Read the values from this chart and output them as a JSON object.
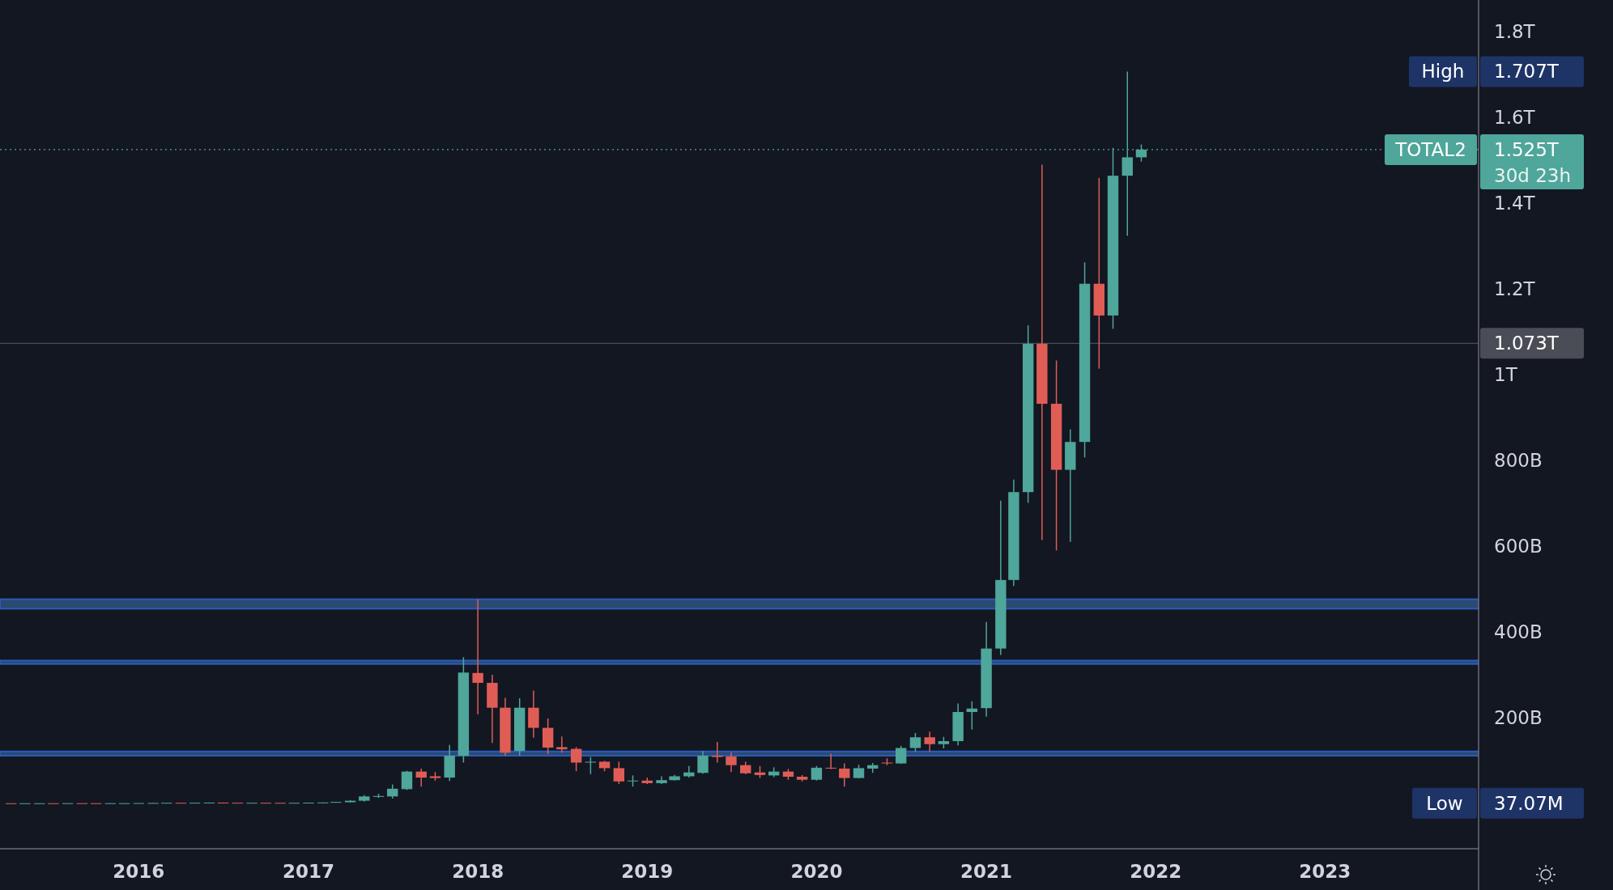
{
  "chart_data": {
    "type": "candlestick",
    "x": [
      "2015-04",
      "2015-05",
      "2015-06",
      "2015-07",
      "2015-08",
      "2015-09",
      "2015-10",
      "2015-11",
      "2015-12",
      "2016-01",
      "2016-02",
      "2016-03",
      "2016-04",
      "2016-05",
      "2016-06",
      "2016-07",
      "2016-08",
      "2016-09",
      "2016-10",
      "2016-11",
      "2016-12",
      "2017-01",
      "2017-02",
      "2017-03",
      "2017-04",
      "2017-05",
      "2017-06",
      "2017-07",
      "2017-08",
      "2017-09",
      "2017-10",
      "2017-11",
      "2017-12",
      "2018-01",
      "2018-02",
      "2018-03",
      "2018-04",
      "2018-05",
      "2018-06",
      "2018-07",
      "2018-08",
      "2018-09",
      "2018-10",
      "2018-11",
      "2018-12",
      "2019-01",
      "2019-02",
      "2019-03",
      "2019-04",
      "2019-05",
      "2019-06",
      "2019-07",
      "2019-08",
      "2019-09",
      "2019-10",
      "2019-11",
      "2019-12",
      "2020-01",
      "2020-02",
      "2020-03",
      "2020-04",
      "2020-05",
      "2020-06",
      "2020-07",
      "2020-08",
      "2020-09",
      "2020-10",
      "2020-11",
      "2020-12",
      "2021-01",
      "2021-02",
      "2021-03",
      "2021-04",
      "2021-05",
      "2021-06",
      "2021-07",
      "2021-08",
      "2021-09",
      "2021-10",
      "2021-11",
      "2021-12"
    ],
    "ohlc": [
      [
        80000000.0,
        90000000.0,
        37070000.0,
        50000000.0
      ],
      [
        50000000.0,
        70000000.0,
        40000000.0,
        60000000.0
      ],
      [
        60000000.0,
        80000000.0,
        50000000.0,
        70000000.0
      ],
      [
        70000000.0,
        90000000.0,
        50000000.0,
        60000000.0
      ],
      [
        60000000.0,
        300000000.0,
        50000000.0,
        250000000.0
      ],
      [
        250000000.0,
        300000000.0,
        150000000.0,
        200000000.0
      ],
      [
        200000000.0,
        250000000.0,
        150000000.0,
        180000000.0
      ],
      [
        180000000.0,
        300000000.0,
        150000000.0,
        250000000.0
      ],
      [
        250000000.0,
        350000000.0,
        200000000.0,
        300000000.0
      ],
      [
        300000000.0,
        600000000.0,
        250000000.0,
        500000000.0
      ],
      [
        500000000.0,
        900000000.0,
        400000000.0,
        800000000.0
      ],
      [
        800000000.0,
        1300000000.0,
        700000000.0,
        1200000000.0
      ],
      [
        1200000000.0,
        1300000000.0,
        900000000.0,
        1000000000.0
      ],
      [
        1000000000.0,
        1400000000.0,
        900000000.0,
        1300000000.0
      ],
      [
        1300000000.0,
        2000000000.0,
        1000000000.0,
        1600000000.0
      ],
      [
        1600000000.0,
        1800000000.0,
        1100000000.0,
        1300000000.0
      ],
      [
        1300000000.0,
        1400000000.0,
        1000000000.0,
        1100000000.0
      ],
      [
        1100000000.0,
        1300000000.0,
        1000000000.0,
        1200000000.0
      ],
      [
        1200000000.0,
        1300000000.0,
        1000000000.0,
        1100000000.0
      ],
      [
        1100000000.0,
        1200000000.0,
        900000000.0,
        1000000000.0
      ],
      [
        1000000000.0,
        1200000000.0,
        900000000.0,
        1100000000.0
      ],
      [
        1100000000.0,
        1600000000.0,
        1000000000.0,
        1500000000.0
      ],
      [
        1500000000.0,
        2000000000.0,
        1300000000.0,
        1900000000.0
      ],
      [
        1900000000.0,
        3500000000.0,
        1800000000.0,
        3200000000.0
      ],
      [
        2500000000.0,
        7000000000.0,
        2000000000.0,
        6000000000.0
      ],
      [
        6000000000.0,
        19000000000.0,
        4000000000.0,
        16000000000.0
      ],
      [
        15000000000.0,
        22000000000.0,
        13000000000.0,
        17000000000.0
      ],
      [
        16000000000.0,
        44000000000.0,
        11000000000.0,
        34000000000.0
      ],
      [
        33000000000.0,
        76000000000.0,
        31000000000.0,
        74000000000.0
      ],
      [
        74000000000.0,
        81000000000.0,
        39000000000.0,
        60000000000.0
      ],
      [
        63000000000.0,
        73000000000.0,
        53000000000.0,
        59000000000.0
      ],
      [
        60000000000.0,
        136000000000.0,
        52000000000.0,
        111000000000.0
      ],
      [
        111000000000.0,
        341000000000.0,
        95000000000.0,
        305000000000.0
      ],
      [
        304000000000.0,
        476000000000.0,
        208000000000.0,
        281000000000.0
      ],
      [
        281000000000.0,
        300000000000.0,
        141000000000.0,
        223000000000.0
      ],
      [
        223000000000.0,
        246000000000.0,
        111000000000.0,
        118000000000.0
      ],
      [
        122000000000.0,
        245000000000.0,
        111000000000.0,
        223000000000.0
      ],
      [
        223000000000.0,
        263000000000.0,
        153000000000.0,
        176000000000.0
      ],
      [
        176000000000.0,
        198000000000.0,
        115000000000.0,
        130000000000.0
      ],
      [
        131000000000.0,
        156000000000.0,
        118000000000.0,
        126000000000.0
      ],
      [
        127000000000.0,
        131000000000.0,
        75000000000.0,
        95000000000.0
      ],
      [
        95000000000.0,
        108000000000.0,
        68000000000.0,
        97000000000.0
      ],
      [
        97000000000.0,
        99000000000.0,
        75000000000.0,
        82000000000.0
      ],
      [
        82000000000.0,
        97000000000.0,
        45000000000.0,
        51000000000.0
      ],
      [
        52000000000.0,
        65000000000.0,
        39000000000.0,
        53000000000.0
      ],
      [
        53000000000.0,
        60000000000.0,
        45000000000.0,
        47000000000.0
      ],
      [
        47000000000.0,
        63000000000.0,
        45000000000.0,
        54000000000.0
      ],
      [
        54000000000.0,
        66000000000.0,
        53000000000.0,
        63000000000.0
      ],
      [
        63000000000.0,
        87000000000.0,
        60000000000.0,
        72000000000.0
      ],
      [
        71000000000.0,
        122000000000.0,
        69000000000.0,
        111000000000.0
      ],
      [
        111000000000.0,
        143000000000.0,
        95000000000.0,
        108000000000.0
      ],
      [
        109000000000.0,
        119000000000.0,
        73000000000.0,
        89000000000.0
      ],
      [
        89000000000.0,
        97000000000.0,
        68000000000.0,
        70000000000.0
      ],
      [
        72000000000.0,
        87000000000.0,
        59000000000.0,
        66000000000.0
      ],
      [
        65000000000.0,
        84000000000.0,
        61000000000.0,
        74000000000.0
      ],
      [
        74000000000.0,
        80000000000.0,
        55000000000.0,
        62000000000.0
      ],
      [
        62000000000.0,
        66000000000.0,
        51000000000.0,
        55000000000.0
      ],
      [
        55000000000.0,
        87000000000.0,
        53000000000.0,
        83000000000.0
      ],
      [
        83000000000.0,
        116000000000.0,
        80000000000.0,
        81000000000.0
      ],
      [
        81000000000.0,
        93000000000.0,
        39000000000.0,
        59000000000.0
      ],
      [
        59000000000.0,
        90000000000.0,
        58000000000.0,
        82000000000.0
      ],
      [
        81000000000.0,
        94000000000.0,
        71000000000.0,
        89000000000.0
      ],
      [
        95000000000.0,
        105000000000.0,
        89000000000.0,
        93000000000.0
      ],
      [
        93000000000.0,
        134000000000.0,
        92000000000.0,
        129000000000.0
      ],
      [
        129000000000.0,
        164000000000.0,
        120000000000.0,
        154000000000.0
      ],
      [
        154000000000.0,
        167000000000.0,
        121000000000.0,
        138000000000.0
      ],
      [
        138000000000.0,
        155000000000.0,
        128000000000.0,
        145000000000.0
      ],
      [
        145000000000.0,
        233000000000.0,
        135000000000.0,
        213000000000.0
      ],
      [
        213000000000.0,
        238000000000.0,
        172000000000.0,
        221000000000.0
      ],
      [
        222000000000.0,
        423000000000.0,
        202000000000.0,
        361000000000.0
      ],
      [
        361000000000.0,
        706000000000.0,
        346000000000.0,
        521000000000.0
      ],
      [
        521000000000.0,
        755000000000.0,
        507000000000.0,
        726000000000.0
      ],
      [
        726000000000.0,
        1115000000000.0,
        701000000000.0,
        1072000000000.0
      ],
      [
        1072000000000.0,
        1490000000000.0,
        614000000000.0,
        932000000000.0
      ],
      [
        932000000000.0,
        1033000000000.0,
        590000000000.0,
        778000000000.0
      ],
      [
        778000000000.0,
        872000000000.0,
        610000000000.0,
        843000000000.0
      ],
      [
        843000000000.0,
        1262000000000.0,
        807000000000.0,
        1212000000000.0
      ],
      [
        1212000000000.0,
        1459000000000.0,
        1014000000000.0,
        1138000000000.0
      ],
      [
        1138000000000.0,
        1529000000000.0,
        1107000000000.0,
        1464000000000.0
      ],
      [
        1464000000000.0,
        1707000000000.0,
        1324000000000.0,
        1507000000000.0
      ],
      [
        1507000000000.0,
        1537000000000.0,
        1497000000000.0,
        1525000000000.0
      ]
    ],
    "colors": [
      "#e05d56",
      "#4fa69a",
      "#4fa69a",
      "#e05d56",
      "#4fa69a",
      "#e05d56",
      "#e05d56",
      "#4fa69a",
      "#4fa69a",
      "#4fa69a",
      "#4fa69a",
      "#4fa69a",
      "#e05d56",
      "#4fa69a",
      "#4fa69a",
      "#e05d56",
      "#e05d56",
      "#4fa69a",
      "#e05d56",
      "#e05d56",
      "#4fa69a",
      "#4fa69a",
      "#4fa69a",
      "#4fa69a",
      "#4fa69a",
      "#4fa69a",
      "#4fa69a",
      "#4fa69a",
      "#4fa69a",
      "#e05d56",
      "#e05d56",
      "#4fa69a",
      "#4fa69a",
      "#e05d56",
      "#e05d56",
      "#e05d56",
      "#4fa69a",
      "#e05d56",
      "#e05d56",
      "#e05d56",
      "#e05d56",
      "#4fa69a",
      "#e05d56",
      "#e05d56",
      "#4fa69a",
      "#e05d56",
      "#4fa69a",
      "#4fa69a",
      "#4fa69a",
      "#4fa69a",
      "#e05d56",
      "#e05d56",
      "#e05d56",
      "#e05d56",
      "#4fa69a",
      "#e05d56",
      "#e05d56",
      "#4fa69a",
      "#e05d56",
      "#e05d56",
      "#4fa69a",
      "#4fa69a",
      "#e05d56",
      "#4fa69a",
      "#4fa69a",
      "#e05d56",
      "#4fa69a",
      "#4fa69a",
      "#4fa69a",
      "#4fa69a",
      "#4fa69a",
      "#4fa69a",
      "#4fa69a",
      "#e05d56",
      "#e05d56",
      "#4fa69a",
      "#4fa69a",
      "#e05d56",
      "#4fa69a",
      "#4fa69a",
      "#4fa69a"
    ],
    "xlim": [
      "2015-03-08",
      "2023-11-28"
    ],
    "xticks": [
      "2016",
      "2017",
      "2018",
      "2019",
      "2020",
      "2021",
      "2022",
      "2023"
    ],
    "ylim": [
      -106000000000.0,
      1874000000000.0
    ],
    "yticks": [
      {
        "value": 200000000000.0,
        "label": "200B"
      },
      {
        "value": 400000000000.0,
        "label": "400B"
      },
      {
        "value": 600000000000.0,
        "label": "600B"
      },
      {
        "value": 800000000000.0,
        "label": "800B"
      },
      {
        "value": 1000000000000.0,
        "label": "1T"
      },
      {
        "value": 1200000000000.0,
        "label": "1.2T"
      },
      {
        "value": 1400000000000.0,
        "label": "1.4T"
      },
      {
        "value": 1600000000000.0,
        "label": "1.6T"
      },
      {
        "value": 1800000000000.0,
        "label": "1.8T"
      }
    ],
    "bands": [
      {
        "axis": "y",
        "from": 454000000000.0,
        "to": 476000000000.0,
        "color": "#2b4a72"
      },
      {
        "axis": "y",
        "from": 325000000000.0,
        "to": 333000000000.0,
        "color": "#2b4a72"
      },
      {
        "axis": "y",
        "from": 111000000000.0,
        "to": 121000000000.0,
        "color": "#2b4a72"
      }
    ],
    "ref_lines": [
      {
        "axis": "y",
        "value": 1525000000000.0,
        "label": "1.525T",
        "color": "#4fa69a",
        "line_style": "dotted"
      },
      {
        "axis": "y",
        "value": 1073000000000.0,
        "label": "1.073T",
        "color": "#4a4d56",
        "line_style": "solid"
      }
    ],
    "annotations": [
      "High",
      "1.707T",
      "TOTAL2",
      "30d 23h",
      "Low",
      "37.07M"
    ]
  }
}
